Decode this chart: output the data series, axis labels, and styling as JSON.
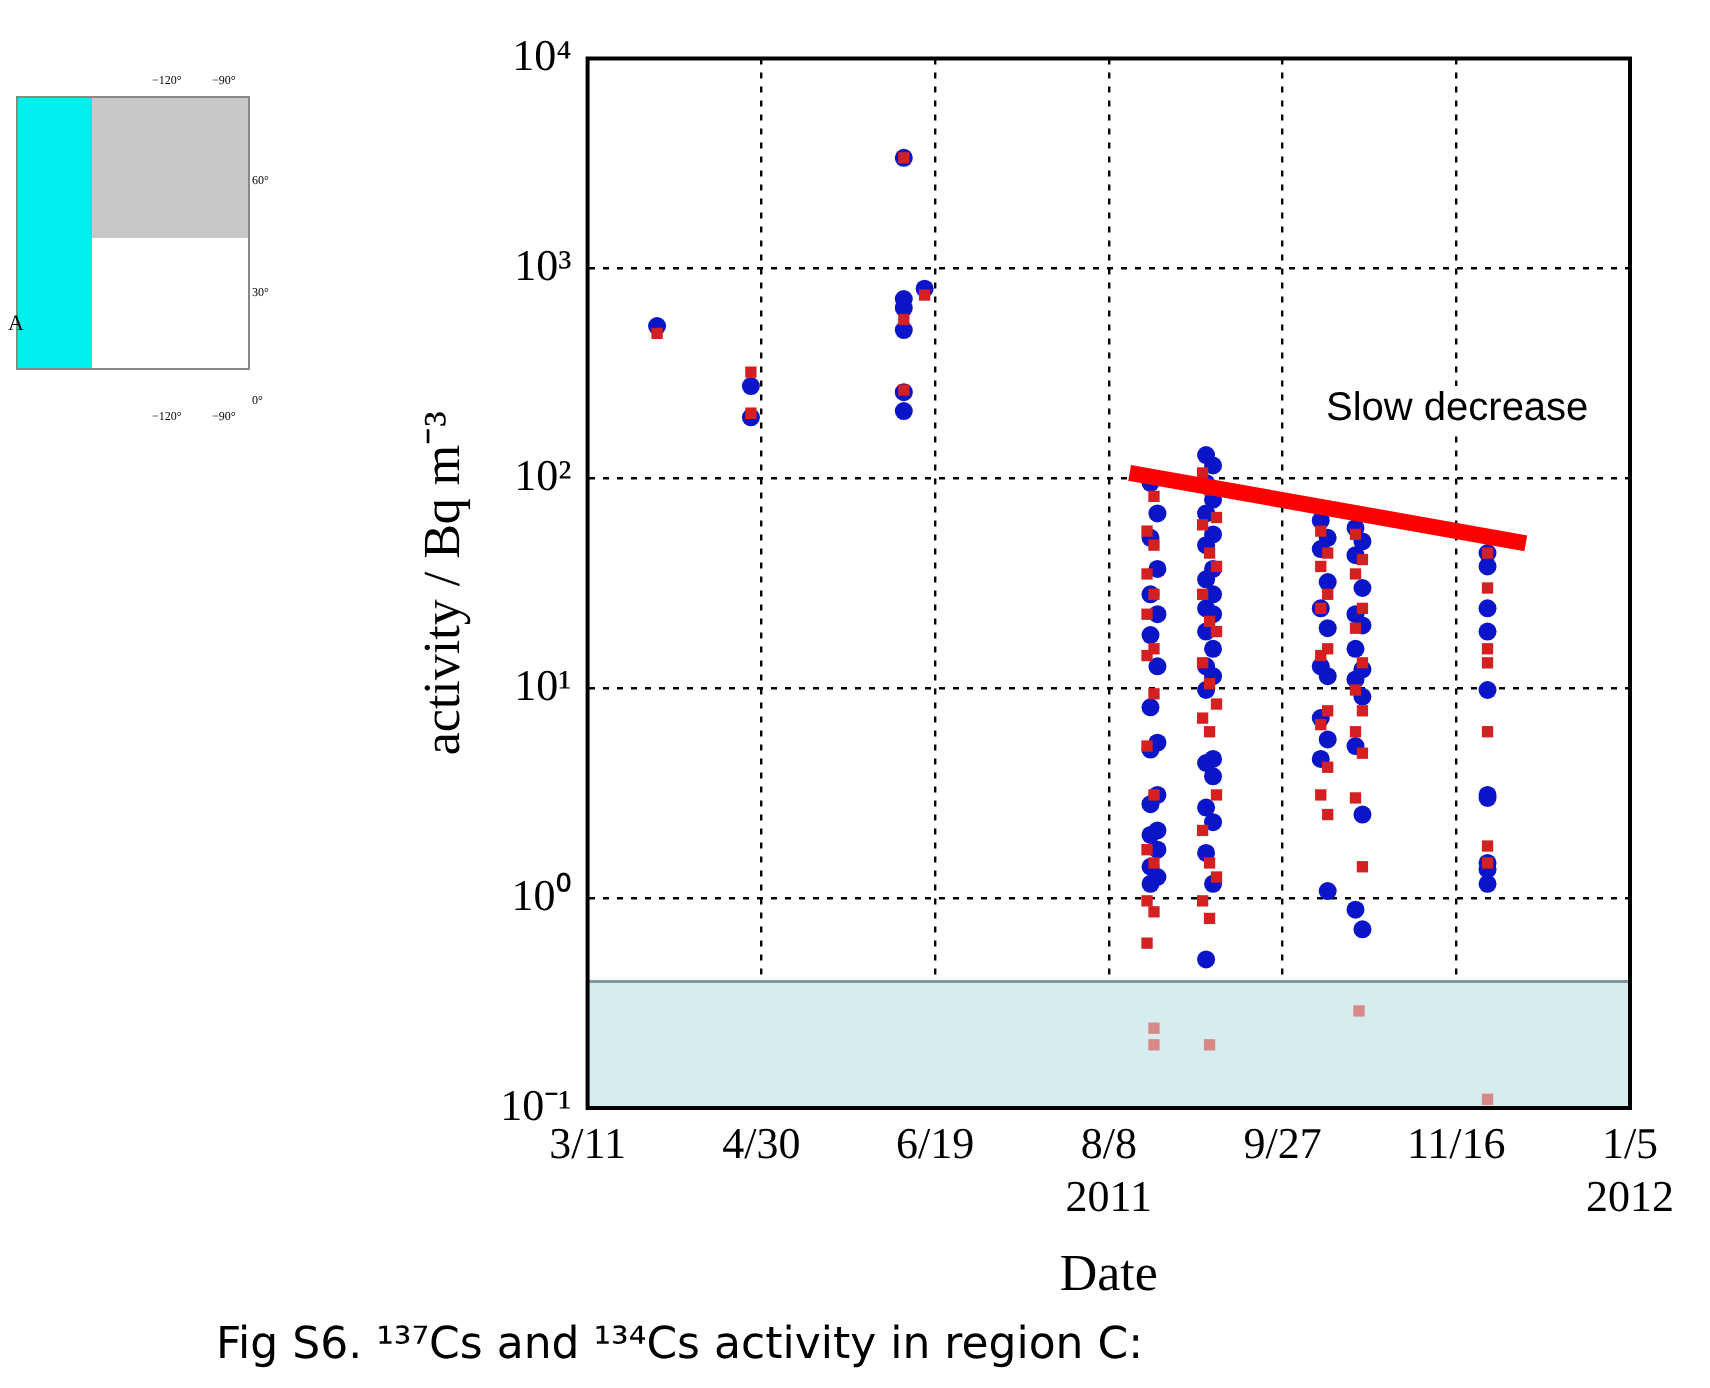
{
  "chart_data": {
    "type": "scatter",
    "xlabel": "Date",
    "ylabel": "activity / Bq m⁻³",
    "xlim": [
      "2011-03-11",
      "2012-01-05"
    ],
    "xticks": [
      {
        "value": "2011-03-11",
        "label": "3/11"
      },
      {
        "value": "2011-04-30",
        "label": "4/30"
      },
      {
        "value": "2011-06-19",
        "label": "6/19"
      },
      {
        "value": "2011-08-08",
        "label": "8/8\n2011"
      },
      {
        "value": "2011-09-27",
        "label": "9/27"
      },
      {
        "value": "2011-11-16",
        "label": "11/16"
      },
      {
        "value": "2012-01-05",
        "label": "1/5\n2012"
      }
    ],
    "ylim": [
      0.1,
      10000
    ],
    "yticks": [
      {
        "value": 0.1,
        "label": "10⁻¹"
      },
      {
        "value": 1,
        "label": "10⁰"
      },
      {
        "value": 10,
        "label": "10¹"
      },
      {
        "value": 100,
        "label": "10²"
      },
      {
        "value": 1000,
        "label": "10³"
      },
      {
        "value": 10000,
        "label": "10⁴"
      }
    ],
    "log": "y",
    "grid": true,
    "legend": false,
    "bands": [
      {
        "axis": "y",
        "from": 0.1,
        "to": 0.4,
        "color": "#d6ecee"
      }
    ],
    "annotations": [
      "Slow decrease",
      "Fig S6. ¹³⁷Cs and ¹³⁴Cs activity in region C:",
      "−120°",
      "−90°",
      "60°",
      "30°",
      "0°",
      "−120°",
      "−90°",
      "A"
    ],
    "series": [
      {
        "color": "#d42020",
        "marker": "square",
        "x": [
          "2011-03-31",
          "2011-04-27",
          "2011-04-27",
          "2011-06-10",
          "2011-06-10",
          "2011-06-10",
          "2011-06-16",
          "2011-08-21",
          "2011-08-19",
          "2011-08-21",
          "2011-08-19",
          "2011-08-21",
          "2011-08-19",
          "2011-08-21",
          "2011-08-19",
          "2011-08-21",
          "2011-08-19",
          "2011-08-21",
          "2011-08-19",
          "2011-08-21",
          "2011-08-19",
          "2011-08-21",
          "2011-08-19",
          "2011-09-04",
          "2011-09-06",
          "2011-09-08",
          "2011-09-04",
          "2011-09-06",
          "2011-09-08",
          "2011-09-04",
          "2011-09-06",
          "2011-09-08",
          "2011-09-04",
          "2011-09-06",
          "2011-09-08",
          "2011-09-04",
          "2011-09-06",
          "2011-09-08",
          "2011-09-04",
          "2011-09-06",
          "2011-09-08",
          "2011-09-04",
          "2011-09-06",
          "2011-10-08",
          "2011-10-10",
          "2011-10-08",
          "2011-10-10",
          "2011-10-08",
          "2011-10-10",
          "2011-10-08",
          "2011-10-10",
          "2011-10-08",
          "2011-10-10",
          "2011-10-08",
          "2011-10-10",
          "2011-10-18",
          "2011-10-20",
          "2011-10-18",
          "2011-10-20",
          "2011-10-18",
          "2011-10-20",
          "2011-10-18",
          "2011-10-20",
          "2011-10-18",
          "2011-10-20",
          "2011-10-18",
          "2011-10-20",
          "2011-11-25",
          "2011-11-25",
          "2011-11-25",
          "2011-11-25",
          "2011-11-25",
          "2011-11-25",
          "2011-11-25"
        ],
        "values": [
          490,
          320,
          204,
          3360,
          570,
          263,
          746,
          82,
          56,
          48,
          35,
          28,
          22.5,
          15.4,
          14.3,
          9.4,
          5.3,
          3.1,
          1.7,
          1.47,
          0.97,
          0.86,
          0.61,
          106,
          88,
          65,
          60,
          44,
          38,
          28,
          20.8,
          18.6,
          13.2,
          10.5,
          8.4,
          7.2,
          6.2,
          3.1,
          2.1,
          1.47,
          1.26,
          0.97,
          0.8,
          56,
          44,
          38,
          28,
          24,
          15.4,
          14.3,
          7.8,
          6.7,
          4.2,
          3.1,
          2.5,
          54,
          41,
          35,
          24,
          19.3,
          13.2,
          9.8,
          7.8,
          6.2,
          4.9,
          3.0,
          1.41,
          44,
          30,
          15.4,
          13.2,
          6.2,
          1.77,
          1.47
        ]
      },
      {
        "color": "#d98888",
        "marker": "square",
        "x": [
          "2011-08-21",
          "2011-08-21",
          "2011-09-06",
          "2011-10-19",
          "2011-11-25"
        ],
        "values": [
          0.24,
          0.2,
          0.2,
          0.29,
          0.11
        ]
      },
      {
        "color": "#0a14c8",
        "marker": "circle",
        "x": [
          "2011-03-31",
          "2011-04-27",
          "2011-04-27",
          "2011-06-10",
          "2011-06-10",
          "2011-06-10",
          "2011-06-10",
          "2011-06-10",
          "2011-06-10",
          "2011-06-16",
          "2011-08-20",
          "2011-08-22",
          "2011-08-20",
          "2011-08-22",
          "2011-08-20",
          "2011-08-22",
          "2011-08-20",
          "2011-08-22",
          "2011-08-20",
          "2011-08-22",
          "2011-08-20",
          "2011-08-22",
          "2011-08-20",
          "2011-08-22",
          "2011-08-20",
          "2011-08-22",
          "2011-08-20",
          "2011-08-22",
          "2011-08-20",
          "2011-09-05",
          "2011-09-07",
          "2011-09-05",
          "2011-09-07",
          "2011-09-05",
          "2011-09-07",
          "2011-09-05",
          "2011-09-07",
          "2011-09-05",
          "2011-09-07",
          "2011-09-05",
          "2011-09-07",
          "2011-09-05",
          "2011-09-07",
          "2011-09-05",
          "2011-09-07",
          "2011-09-05",
          "2011-09-07",
          "2011-09-05",
          "2011-09-07",
          "2011-09-05",
          "2011-09-07",
          "2011-09-05",
          "2011-09-07",
          "2011-09-05",
          "2011-10-08",
          "2011-10-10",
          "2011-10-08",
          "2011-10-10",
          "2011-10-08",
          "2011-10-10",
          "2011-10-08",
          "2011-10-10",
          "2011-10-08",
          "2011-10-10",
          "2011-10-08",
          "2011-10-10",
          "2011-10-18",
          "2011-10-20",
          "2011-10-18",
          "2011-10-20",
          "2011-10-18",
          "2011-10-20",
          "2011-10-18",
          "2011-10-20",
          "2011-10-18",
          "2011-10-20",
          "2011-10-18",
          "2011-10-20",
          "2011-10-18",
          "2011-10-20",
          "2011-11-25",
          "2011-11-25",
          "2011-11-25",
          "2011-11-25",
          "2011-11-25",
          "2011-11-25",
          "2011-11-25",
          "2011-11-25",
          "2011-11-25",
          "2011-11-25"
        ],
        "values": [
          531,
          275,
          195,
          3360,
          714,
          647,
          508,
          257,
          209,
          800,
          95,
          68,
          52,
          37,
          28,
          22.5,
          17.9,
          12.7,
          8.1,
          5.5,
          5.1,
          3.1,
          2.8,
          2.1,
          2.0,
          1.7,
          1.41,
          1.26,
          1.17,
          129,
          115,
          95,
          79,
          68,
          54,
          48,
          37,
          33,
          28,
          24,
          22.5,
          18.6,
          15.4,
          12.7,
          11.4,
          9.8,
          4.6,
          4.4,
          3.8,
          2.7,
          2.3,
          1.64,
          1.17,
          0.51,
          63,
          52,
          46,
          32,
          24,
          19.3,
          12.7,
          11.4,
          7.2,
          5.7,
          4.6,
          1.08,
          58,
          50,
          43,
          30,
          22.5,
          19.9,
          15.4,
          12.3,
          11.0,
          9.1,
          5.3,
          2.5,
          0.88,
          0.71,
          44,
          38,
          24,
          18.6,
          9.8,
          3.1,
          3.0,
          1.47,
          1.37,
          1.17
        ]
      },
      {
        "type": "line",
        "color": "#ff0000",
        "marker": "none",
        "x": [
          "2011-08-14",
          "2011-12-06"
        ],
        "values": [
          106,
          49
        ]
      }
    ]
  }
}
